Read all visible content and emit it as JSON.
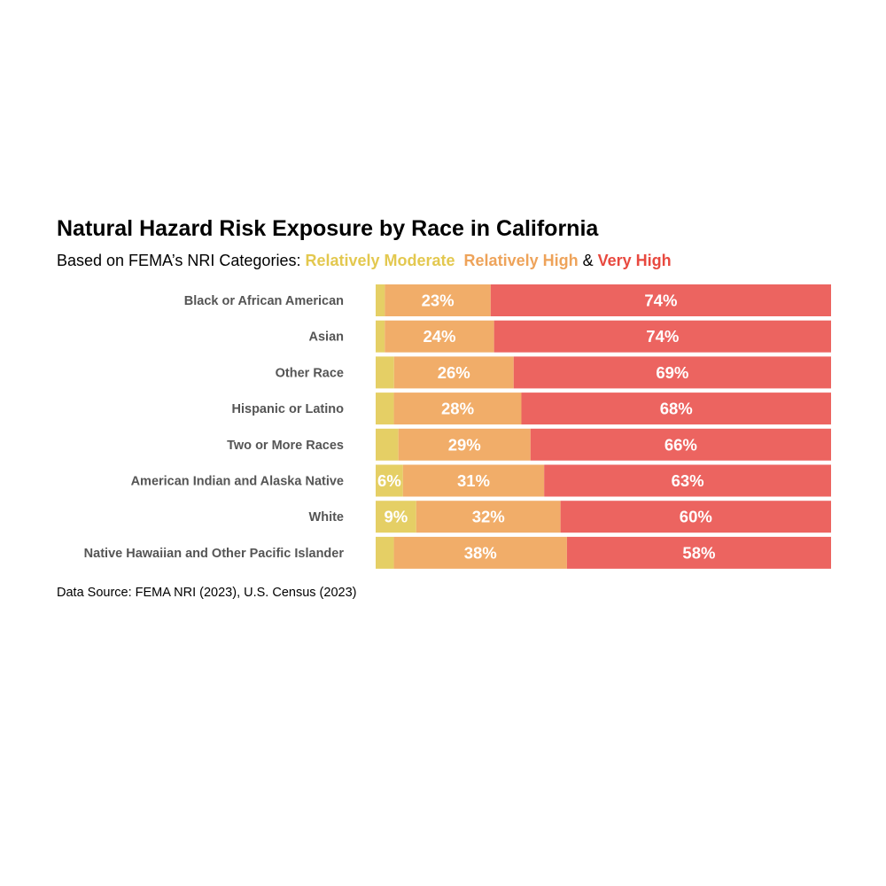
{
  "title": "Natural Hazard Risk Exposure by Race in California",
  "subtitle": {
    "prefix": "Based on FEMA’s NRI Categories: ",
    "moderate": "Relatively Moderate",
    "gap": "  ",
    "high": "Relatively High",
    "amp": " & ",
    "very_high": "Very High"
  },
  "source": "Data Source: FEMA NRI (2023), U.S. Census (2023)",
  "colors": {
    "moderate": "#e5cf65",
    "high": "#f1ad69",
    "very_high": "#ec6460",
    "moderate_text": "#e3c84f",
    "high_text": "#eea35a",
    "very_high_text": "#e8493f"
  },
  "chart_data": {
    "type": "bar",
    "orientation": "horizontal",
    "stacked": true,
    "title": "Natural Hazard Risk Exposure by Race in California",
    "categories": [
      "Black or African American",
      "Asian",
      "Other Race",
      "Hispanic or Latino",
      "Two or More Races",
      "American Indian and Alaska Native",
      "White",
      "Native Hawaiian and Other Pacific Islander"
    ],
    "series": [
      {
        "name": "Relatively Moderate",
        "values": [
          2,
          2,
          4,
          4,
          5,
          6,
          9,
          4
        ],
        "labels": [
          "",
          "",
          "",
          "",
          "",
          "6%",
          "9%",
          ""
        ]
      },
      {
        "name": "Relatively High",
        "values": [
          23,
          24,
          26,
          28,
          29,
          31,
          32,
          38
        ],
        "labels": [
          "23%",
          "24%",
          "26%",
          "28%",
          "29%",
          "31%",
          "32%",
          "38%"
        ]
      },
      {
        "name": "Very High",
        "values": [
          74,
          74,
          69,
          68,
          66,
          63,
          60,
          58
        ],
        "labels": [
          "74%",
          "74%",
          "69%",
          "68%",
          "66%",
          "63%",
          "60%",
          "58%"
        ]
      }
    ],
    "xlim": [
      0,
      100
    ],
    "grid": false,
    "legend": "subtitle"
  }
}
